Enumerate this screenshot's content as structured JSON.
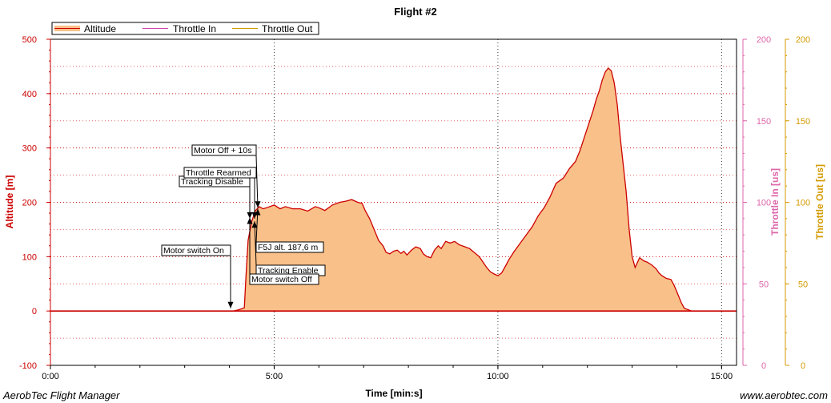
{
  "chart_data": {
    "type": "area",
    "title": "Flight #2",
    "xlabel": "Time [min:s]",
    "ylabel_left": "Altitude [m]",
    "ylabel_right1": "Throttle In [us]",
    "ylabel_right2": "Throttle Out [us]",
    "xlim": [
      0,
      920
    ],
    "ylim": [
      -100,
      500
    ],
    "ylim_right1": [
      0,
      200
    ],
    "ylim_right2": [
      0,
      200
    ],
    "x_ticks": [
      {
        "value": 0,
        "label": "0:00"
      },
      {
        "value": 300,
        "label": "5:00"
      },
      {
        "value": 600,
        "label": "10:00"
      },
      {
        "value": 900,
        "label": "15:00"
      }
    ],
    "y_ticks": [
      -100,
      0,
      100,
      200,
      300,
      400,
      500
    ],
    "y_ticks_right1": [
      0,
      50,
      100,
      150,
      200
    ],
    "y_ticks_right2": [
      0,
      50,
      100,
      150,
      200
    ],
    "grid": true,
    "legend_position": "top-left",
    "legend": [
      "Altitude",
      "Throttle In",
      "Throttle Out"
    ],
    "colors": {
      "altitude_line": "#cc0000",
      "altitude_fill": "#f9c089",
      "throttle_in": "#cc44aa",
      "throttle_out": "#cc9900",
      "axis_left": "#cc0000",
      "axis_right1": "#dd66aa",
      "axis_right2": "#d49a00",
      "grid": "#cc0000"
    },
    "series": [
      {
        "name": "Altitude",
        "x": [
          0,
          100,
          150,
          200,
          230,
          245,
          252,
          256,
          260,
          262,
          265,
          270,
          275,
          280,
          285,
          290,
          300,
          308,
          315,
          325,
          335,
          345,
          355,
          360,
          368,
          378,
          388,
          396,
          404,
          412,
          418,
          422,
          428,
          434,
          440,
          446,
          450,
          455,
          460,
          465,
          470,
          474,
          478,
          484,
          490,
          496,
          500,
          505,
          510,
          515,
          520,
          524,
          530,
          536,
          542,
          548,
          552,
          556,
          562,
          568,
          575,
          580,
          585,
          590,
          595,
          600,
          605,
          610,
          615,
          622,
          630,
          638,
          646,
          654,
          662,
          670,
          678,
          688,
          696,
          704,
          710,
          716,
          722,
          728,
          732,
          736,
          740,
          744,
          748,
          752,
          756,
          760,
          764,
          768,
          772,
          776,
          780,
          784,
          790,
          796,
          800,
          806,
          812,
          816,
          820,
          826,
          832,
          836,
          840,
          846,
          850,
          860,
          900,
          920
        ],
        "values": [
          0,
          0,
          0,
          0,
          0,
          0,
          2,
          4,
          6,
          60,
          130,
          165,
          185,
          192,
          188,
          190,
          195,
          188,
          192,
          188,
          188,
          184,
          192,
          190,
          185,
          195,
          200,
          202,
          205,
          200,
          198,
          185,
          170,
          150,
          130,
          120,
          108,
          105,
          110,
          112,
          106,
          110,
          103,
          112,
          118,
          115,
          105,
          100,
          98,
          112,
          120,
          115,
          128,
          125,
          128,
          122,
          120,
          118,
          115,
          108,
          100,
          90,
          80,
          72,
          68,
          65,
          70,
          82,
          95,
          110,
          125,
          140,
          155,
          175,
          190,
          210,
          235,
          245,
          262,
          275,
          295,
          320,
          345,
          370,
          390,
          405,
          425,
          440,
          447,
          442,
          420,
          380,
          320,
          270,
          220,
          150,
          100,
          80,
          98,
          92,
          90,
          85,
          78,
          70,
          65,
          60,
          58,
          48,
          35,
          15,
          5,
          0,
          0,
          0
        ]
      },
      {
        "name": "Throttle In",
        "x": [
          0,
          920
        ],
        "values": [
          0,
          0
        ]
      },
      {
        "name": "Throttle Out",
        "x": [
          0,
          920
        ],
        "values": [
          0,
          0
        ]
      }
    ],
    "annotations": [
      {
        "label": "Motor switch On",
        "x": 242,
        "y": 5,
        "marker": "down"
      },
      {
        "label": "Tracking Disable",
        "x": 266,
        "y": 170,
        "marker": "down"
      },
      {
        "label": "Throttle Rearmed",
        "x": 266,
        "y": 170,
        "marker": "down"
      },
      {
        "label": "Motor Off + 10s",
        "x": 273,
        "y": 190,
        "marker": "down"
      },
      {
        "label": "F5J alt. 187,6 m",
        "x": 277,
        "y": 188,
        "marker": "up"
      },
      {
        "label": "Tracking Enable",
        "x": 268,
        "y": 165,
        "marker": "up"
      },
      {
        "label": "Motor switch Off",
        "x": 270,
        "y": 172,
        "marker": "up"
      }
    ]
  },
  "footer": {
    "left": "AerobTec Flight Manager",
    "right": "www.aerobtec.com"
  }
}
